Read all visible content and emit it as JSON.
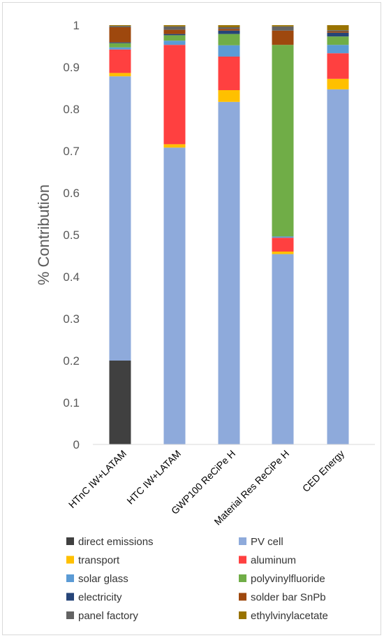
{
  "chart_data": {
    "type": "bar",
    "stacked": true,
    "ylabel": "% Contribution",
    "xlabel": "",
    "title": "",
    "ylim": [
      0,
      1
    ],
    "yticks": [
      "0",
      "0.1",
      "0.2",
      "0.3",
      "0.4",
      "0.5",
      "0.6",
      "0.7",
      "0.8",
      "0.9",
      "1"
    ],
    "grid": false,
    "legend_position": "bottom",
    "categories": [
      "HTnC IW+LATAM",
      "HTC IW+LATAM",
      "GWP100 ReCiPe H",
      "Material Res ReCiPe H",
      "CED Energy"
    ],
    "series": [
      {
        "name": "direct emissions",
        "color": "#404040",
        "values": [
          0.2,
          0.0,
          0.0,
          0.0,
          0.0
        ]
      },
      {
        "name": "PV cell",
        "color": "#8eaadb",
        "values": [
          0.678,
          0.708,
          0.817,
          0.454,
          0.847
        ]
      },
      {
        "name": "transport",
        "color": "#ffc000",
        "values": [
          0.008,
          0.008,
          0.028,
          0.006,
          0.025
        ]
      },
      {
        "name": "aluminum",
        "color": "#ff4040",
        "values": [
          0.056,
          0.237,
          0.08,
          0.033,
          0.061
        ]
      },
      {
        "name": "solar glass",
        "color": "#5b9bd5",
        "values": [
          0.005,
          0.01,
          0.027,
          0.003,
          0.02
        ]
      },
      {
        "name": "polyvinylfluoride",
        "color": "#70ad47",
        "values": [
          0.01,
          0.013,
          0.027,
          0.457,
          0.02
        ]
      },
      {
        "name": "electricity",
        "color": "#264478",
        "values": [
          0.002,
          0.003,
          0.008,
          0.0,
          0.009
        ]
      },
      {
        "name": "solder bar SnPb",
        "color": "#9e480e",
        "values": [
          0.036,
          0.01,
          0.004,
          0.034,
          0.003
        ]
      },
      {
        "name": "panel factory",
        "color": "#636363",
        "values": [
          0.003,
          0.008,
          0.004,
          0.01,
          0.003
        ]
      },
      {
        "name": "ethylvinylacetate",
        "color": "#997300",
        "values": [
          0.002,
          0.003,
          0.005,
          0.003,
          0.012
        ]
      }
    ]
  }
}
